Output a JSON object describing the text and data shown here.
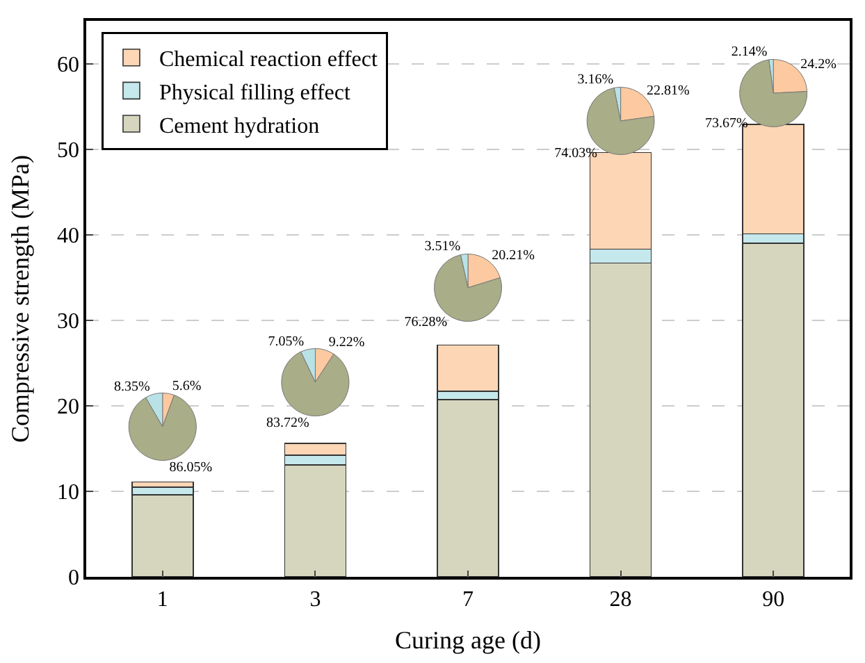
{
  "chart_data": [
    {
      "type": "bar",
      "stacked": true,
      "xlabel": "Curing age (d)",
      "ylabel": "Compressive strength (MPa)",
      "categories": [
        "1",
        "3",
        "7",
        "28",
        "90"
      ],
      "ylim": [
        0,
        65
      ],
      "yticks": [
        0,
        10,
        20,
        30,
        40,
        50,
        60
      ],
      "grid": "y",
      "legend": "top left",
      "series": [
        {
          "name": "Cement hydration",
          "color": "#d6d6bf",
          "values": [
            9.6,
            13.1,
            20.7,
            36.7,
            39.0
          ]
        },
        {
          "name": "Physical filling effect",
          "color": "#c5e8ec",
          "values": [
            0.9,
            1.1,
            1.0,
            1.6,
            1.1
          ]
        },
        {
          "name": "Chemical reaction effect",
          "color": "#fdd6b5",
          "values": [
            0.6,
            1.4,
            5.4,
            11.3,
            12.8
          ]
        }
      ]
    },
    {
      "type": "pie",
      "categories": [
        null,
        null,
        null
      ],
      "values": [
        5.6,
        8.35,
        86.05
      ],
      "colors": [
        "#fcc9a0",
        "#b8e2e6",
        "#a9ad88"
      ],
      "value_labels": [
        "5.6%",
        "8.35%",
        "86.05%"
      ]
    },
    {
      "type": "pie",
      "categories": [
        null,
        null,
        null
      ],
      "values": [
        9.22,
        7.05,
        83.72
      ],
      "colors": [
        "#fcc9a0",
        "#b8e2e6",
        "#a9ad88"
      ],
      "value_labels": [
        "9.22%",
        "7.05%",
        "83.72%"
      ]
    },
    {
      "type": "pie",
      "categories": [
        null,
        null,
        null
      ],
      "values": [
        20.21,
        3.51,
        76.28
      ],
      "colors": [
        "#fcc9a0",
        "#b8e2e6",
        "#a9ad88"
      ],
      "value_labels": [
        "20.21%",
        "3.51%",
        "76.28%"
      ]
    },
    {
      "type": "pie",
      "categories": [
        null,
        null,
        null
      ],
      "values": [
        22.81,
        3.16,
        74.03
      ],
      "colors": [
        "#fcc9a0",
        "#b8e2e6",
        "#a9ad88"
      ],
      "value_labels": [
        "22.81%",
        "3.16%",
        "74.03%"
      ]
    },
    {
      "type": "pie",
      "categories": [
        null,
        null,
        null
      ],
      "values": [
        24.2,
        2.14,
        73.67
      ],
      "colors": [
        "#fcc9a0",
        "#b8e2e6",
        "#a9ad88"
      ],
      "value_labels": [
        "24.2%",
        "2.14%",
        "73.67%"
      ]
    }
  ]
}
